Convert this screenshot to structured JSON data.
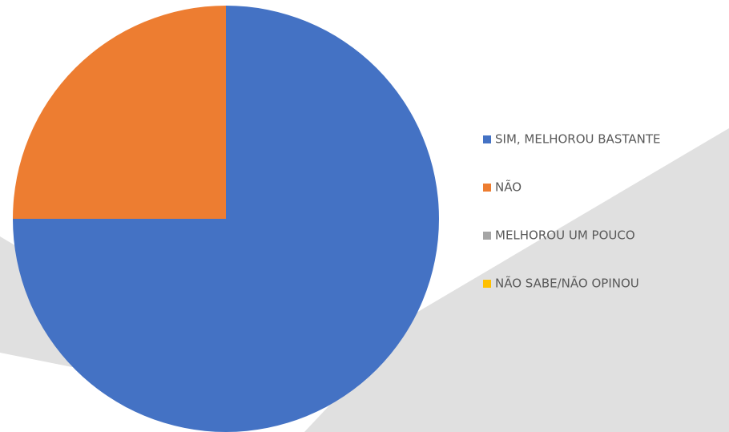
{
  "chart_data": {
    "type": "pie",
    "categories": [
      "SIM, MELHOROU BASTANTE",
      "NÃO",
      "MELHOROU UM POUCO",
      "NÃO SABE/NÃO OPINOU"
    ],
    "values": [
      75,
      25,
      0,
      0
    ],
    "colors": [
      "#4472c4",
      "#ed7d31",
      "#a5a5a5",
      "#ffc000"
    ],
    "legend": "right"
  }
}
